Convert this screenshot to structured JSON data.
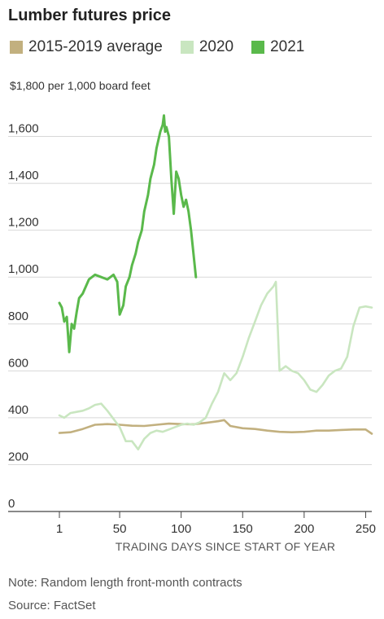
{
  "chart_data": {
    "type": "line",
    "title": "Lumber futures price",
    "unit_label": "$1,800 per 1,000 board feet",
    "xlabel": "TRADING DAYS SINCE START OF YEAR",
    "ylabel": "",
    "xlim": [
      1,
      255
    ],
    "ylim": [
      0,
      1800
    ],
    "x_ticks": [
      1,
      50,
      100,
      150,
      200,
      250
    ],
    "x_tick_labels": [
      "1",
      "50",
      "100",
      "150",
      "200",
      "250"
    ],
    "y_ticks": [
      0,
      200,
      400,
      600,
      800,
      1000,
      1200,
      1400,
      1600
    ],
    "y_tick_labels": [
      "0",
      "200",
      "400",
      "600",
      "800",
      "1,000",
      "1,200",
      "1,400",
      "1,600"
    ],
    "grid": true,
    "legend_position": "top",
    "note": "Note: Random length front-month contracts",
    "source": "Source: FactSet",
    "series": [
      {
        "name": "2015-2019 average",
        "color": "#c2b07f",
        "x": [
          1,
          10,
          20,
          30,
          40,
          50,
          60,
          70,
          80,
          90,
          100,
          110,
          120,
          130,
          135,
          140,
          150,
          160,
          170,
          180,
          190,
          200,
          210,
          220,
          230,
          240,
          250,
          255
        ],
        "y": [
          335,
          338,
          352,
          370,
          373,
          370,
          366,
          365,
          370,
          375,
          373,
          372,
          378,
          385,
          390,
          365,
          355,
          352,
          345,
          340,
          338,
          340,
          345,
          345,
          348,
          350,
          350,
          332
        ]
      },
      {
        "name": "2020",
        "color": "#c9e6c0",
        "x": [
          1,
          5,
          10,
          15,
          20,
          25,
          30,
          35,
          40,
          45,
          50,
          55,
          60,
          65,
          70,
          75,
          80,
          85,
          90,
          95,
          100,
          105,
          110,
          115,
          120,
          125,
          130,
          135,
          140,
          145,
          150,
          155,
          160,
          165,
          170,
          175,
          177,
          180,
          185,
          190,
          195,
          200,
          205,
          210,
          215,
          220,
          225,
          230,
          235,
          240,
          245,
          250,
          255
        ],
        "y": [
          410,
          400,
          420,
          425,
          430,
          440,
          455,
          460,
          430,
          395,
          360,
          300,
          300,
          265,
          310,
          335,
          345,
          340,
          350,
          360,
          370,
          375,
          370,
          380,
          400,
          460,
          510,
          590,
          560,
          590,
          660,
          740,
          810,
          880,
          930,
          960,
          980,
          600,
          620,
          600,
          590,
          560,
          520,
          510,
          540,
          580,
          600,
          610,
          660,
          790,
          870,
          875,
          870
        ]
      },
      {
        "name": "2021",
        "color": "#5ab94b",
        "x": [
          1,
          3,
          5,
          7,
          9,
          11,
          13,
          15,
          17,
          20,
          25,
          30,
          35,
          40,
          45,
          48,
          50,
          53,
          55,
          58,
          60,
          63,
          65,
          68,
          70,
          73,
          75,
          78,
          80,
          83,
          85,
          86,
          87,
          88,
          90,
          92,
          94,
          96,
          98,
          100,
          102,
          104,
          106,
          108,
          110,
          112
        ],
        "y": [
          890,
          870,
          810,
          830,
          680,
          800,
          780,
          850,
          910,
          930,
          990,
          1010,
          1000,
          990,
          1010,
          980,
          840,
          880,
          960,
          1000,
          1050,
          1100,
          1150,
          1200,
          1280,
          1350,
          1420,
          1480,
          1550,
          1620,
          1650,
          1690,
          1620,
          1640,
          1600,
          1420,
          1270,
          1450,
          1420,
          1350,
          1300,
          1330,
          1280,
          1200,
          1100,
          1000
        ]
      }
    ]
  }
}
